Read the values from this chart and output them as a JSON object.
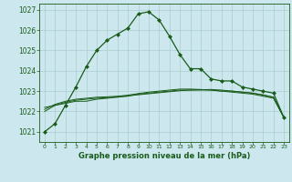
{
  "title": "Graphe pression niveau de la mer (hPa)",
  "bg_color": "#cce8ee",
  "grid_color": "#aacccc",
  "line_color": "#1a5c1a",
  "x_ticks": [
    0,
    1,
    2,
    3,
    4,
    5,
    6,
    7,
    8,
    9,
    10,
    11,
    12,
    13,
    14,
    15,
    16,
    17,
    18,
    19,
    20,
    21,
    22,
    23
  ],
  "yticks": [
    1021,
    1022,
    1023,
    1024,
    1025,
    1026,
    1027
  ],
  "ylim_low": 1020.5,
  "ylim_high": 1027.3,
  "series1": [
    1021.0,
    1021.4,
    1022.3,
    1023.2,
    1024.2,
    1025.0,
    1025.5,
    1025.8,
    1026.1,
    1026.8,
    1026.9,
    1026.5,
    1025.7,
    1024.8,
    1024.1,
    1024.1,
    1023.6,
    1023.5,
    1023.5,
    1023.2,
    1023.1,
    1023.0,
    1022.9,
    1021.7
  ],
  "series2": [
    1022.0,
    1022.3,
    1022.4,
    1022.5,
    1022.5,
    1022.6,
    1022.65,
    1022.7,
    1022.75,
    1022.85,
    1022.9,
    1022.95,
    1023.0,
    1023.05,
    1023.05,
    1023.05,
    1023.05,
    1023.0,
    1023.0,
    1022.95,
    1022.9,
    1022.8,
    1022.7,
    1021.7
  ],
  "series3": [
    1022.1,
    1022.35,
    1022.5,
    1022.6,
    1022.65,
    1022.7,
    1022.72,
    1022.75,
    1022.8,
    1022.88,
    1022.95,
    1023.0,
    1023.05,
    1023.1,
    1023.1,
    1023.08,
    1023.05,
    1023.0,
    1022.95,
    1022.9,
    1022.85,
    1022.75,
    1022.65,
    1021.7
  ],
  "series4": [
    1022.2,
    1022.3,
    1022.45,
    1022.55,
    1022.6,
    1022.65,
    1022.68,
    1022.72,
    1022.77,
    1022.82,
    1022.87,
    1022.92,
    1022.97,
    1023.02,
    1023.05,
    1023.07,
    1023.08,
    1023.05,
    1023.0,
    1022.95,
    1022.9,
    1022.82,
    1022.7,
    1021.7
  ]
}
